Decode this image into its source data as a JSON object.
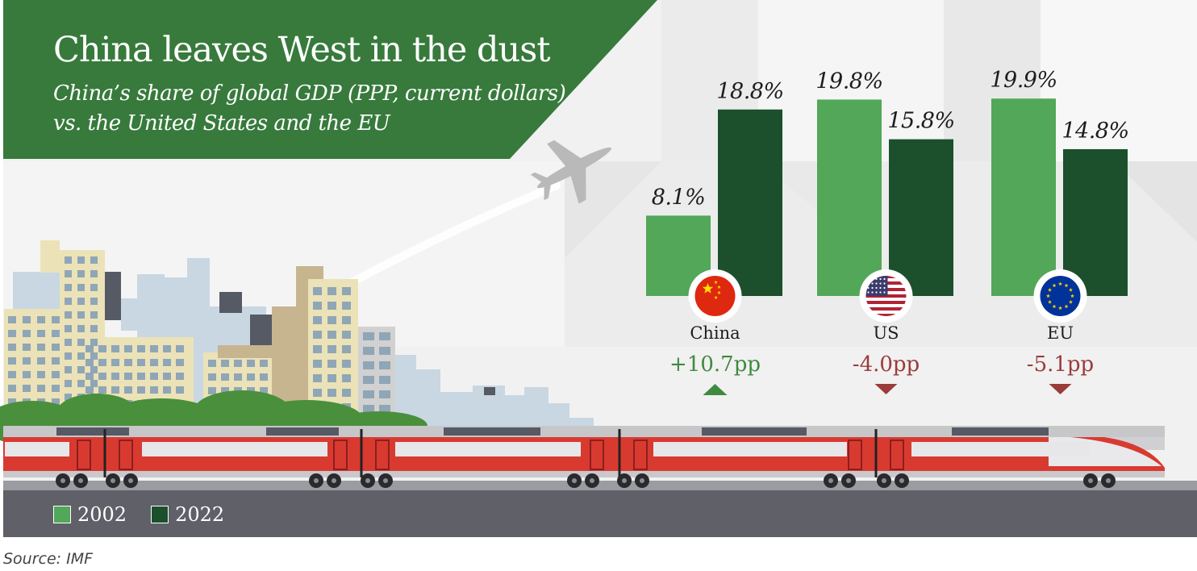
{
  "header": {
    "title": "China leaves West in the dust",
    "subtitle": "China’s share of global GDP (PPP, current dollars) vs. the United States and the EU"
  },
  "colors": {
    "banner": "#377a3c",
    "bar_2002": "#52a758",
    "bar_2022": "#1c4f2c",
    "positive": "#3f8a3f",
    "negative": "#9b3b3b",
    "train_red": "#d93a30",
    "ground": "#5f6068"
  },
  "chart_data": {
    "type": "bar",
    "categories": [
      "China",
      "US",
      "EU"
    ],
    "series": [
      {
        "name": "2002",
        "values": [
          8.1,
          19.8,
          19.9
        ],
        "labels": [
          "8.1%",
          "19.8%",
          "19.9%"
        ]
      },
      {
        "name": "2022",
        "values": [
          18.8,
          15.8,
          14.8
        ],
        "labels": [
          "18.8%",
          "15.8%",
          "14.8%"
        ]
      }
    ],
    "changes": [
      "+10.7pp",
      "-4.0pp",
      "-5.1pp"
    ],
    "change_direction": [
      "up",
      "down",
      "down"
    ],
    "flags": [
      "china-flag-icon",
      "us-flag-icon",
      "eu-flag-icon"
    ],
    "ylim": [
      0,
      20
    ],
    "grid": false,
    "legend_position": "bottom-left"
  },
  "legend": {
    "items": [
      {
        "label": "2002",
        "color": "#52a758"
      },
      {
        "label": "2022",
        "color": "#1c4f2c"
      }
    ]
  },
  "footer": {
    "source": "Source: IMF"
  }
}
